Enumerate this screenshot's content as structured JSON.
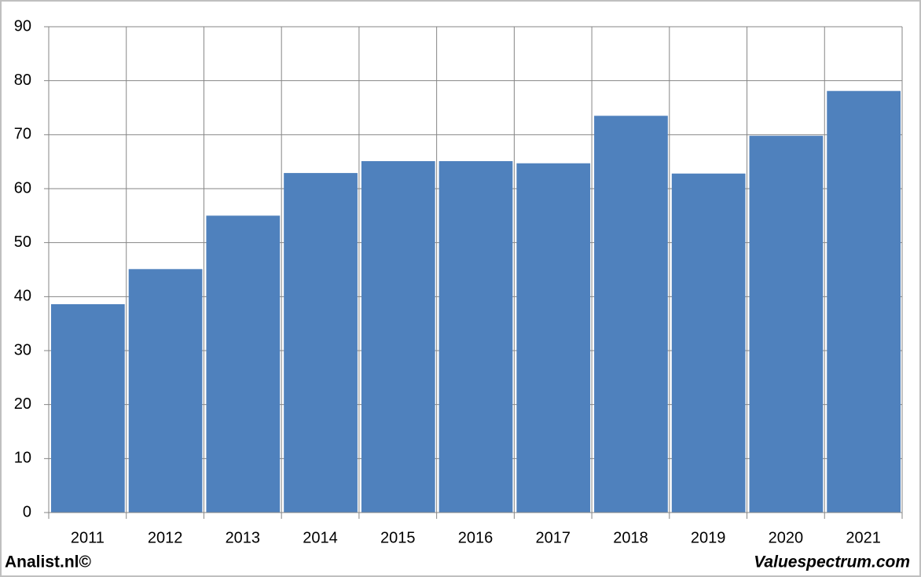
{
  "chart_data": {
    "type": "bar",
    "categories": [
      "2011",
      "2012",
      "2013",
      "2014",
      "2015",
      "2016",
      "2017",
      "2018",
      "2019",
      "2020",
      "2021"
    ],
    "values": [
      38.6,
      45.1,
      55.0,
      62.9,
      65.1,
      65.1,
      64.7,
      73.5,
      62.8,
      69.8,
      78.1
    ],
    "color": "#4f81bd",
    "ylim": [
      0,
      90
    ],
    "yticks": [
      0,
      10,
      20,
      30,
      40,
      50,
      60,
      70,
      80,
      90
    ],
    "grid": true,
    "source_left": "Analist.nl©",
    "source_right": "Valuespectrum.com"
  }
}
